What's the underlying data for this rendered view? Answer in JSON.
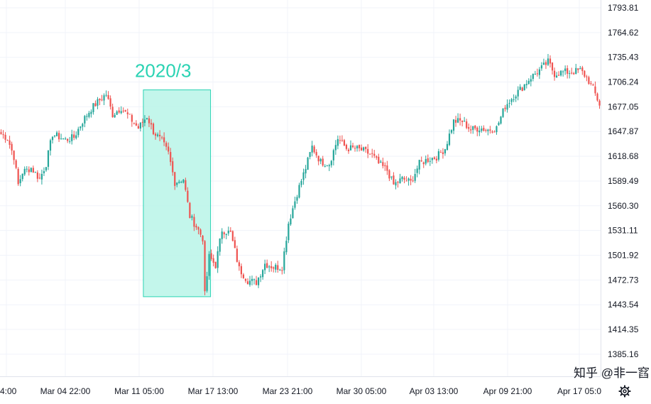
{
  "chart_data": {
    "type": "candlestick",
    "x_tick_labels": [
      "4:00",
      "Mar 04 22:00",
      "Mar 11 05:00",
      "Mar 17 13:00",
      "Mar 23 21:00",
      "Mar 30 05:00",
      "Apr 03 13:00",
      "Apr 09 21:00",
      "Apr 17 05:0"
    ],
    "y_tick_labels": [
      "1793.81",
      "1764.62",
      "1735.43",
      "1706.24",
      "1677.05",
      "1647.87",
      "1618.68",
      "1589.49",
      "1560.30",
      "1531.11",
      "1501.92",
      "1472.73",
      "1443.54",
      "1414.35",
      "1385.16"
    ],
    "ylim": [
      1371,
      1804
    ],
    "grid": true,
    "up_color": "#26a69a",
    "down_color": "#ef5350",
    "highlight": {
      "label": "2020/3",
      "from_index": 67,
      "to_index": 97,
      "y_range": [
        1453,
        1697
      ],
      "fill": "#b9f5e7",
      "stroke": "#2ad3b3"
    },
    "close_path": [
      [
        0,
        1645
      ],
      [
        3,
        1640
      ],
      [
        6,
        1618
      ],
      [
        8,
        1585
      ],
      [
        10,
        1600
      ],
      [
        14,
        1605
      ],
      [
        18,
        1592
      ],
      [
        21,
        1610
      ],
      [
        24,
        1645
      ],
      [
        30,
        1638
      ],
      [
        34,
        1641
      ],
      [
        38,
        1660
      ],
      [
        42,
        1675
      ],
      [
        46,
        1685
      ],
      [
        49,
        1692
      ],
      [
        52,
        1668
      ],
      [
        56,
        1676
      ],
      [
        60,
        1664
      ],
      [
        64,
        1652
      ],
      [
        68,
        1666
      ],
      [
        71,
        1648
      ],
      [
        75,
        1636
      ],
      [
        78,
        1622
      ],
      [
        81,
        1588
      ],
      [
        85,
        1592
      ],
      [
        88,
        1548
      ],
      [
        91,
        1536
      ],
      [
        94,
        1522
      ],
      [
        95,
        1455
      ],
      [
        97,
        1500
      ],
      [
        100,
        1490
      ],
      [
        103,
        1532
      ],
      [
        107,
        1528
      ],
      [
        111,
        1486
      ],
      [
        115,
        1472
      ],
      [
        119,
        1470
      ],
      [
        123,
        1492
      ],
      [
        127,
        1488
      ],
      [
        131,
        1488
      ],
      [
        134,
        1540
      ],
      [
        138,
        1575
      ],
      [
        142,
        1605
      ],
      [
        145,
        1630
      ],
      [
        149,
        1612
      ],
      [
        153,
        1610
      ],
      [
        157,
        1640
      ],
      [
        161,
        1628
      ],
      [
        165,
        1628
      ],
      [
        169,
        1625
      ],
      [
        173,
        1620
      ],
      [
        176,
        1610
      ],
      [
        180,
        1602
      ],
      [
        183,
        1585
      ],
      [
        187,
        1592
      ],
      [
        191,
        1588
      ],
      [
        195,
        1610
      ],
      [
        199,
        1615
      ],
      [
        203,
        1618
      ],
      [
        207,
        1628
      ],
      [
        211,
        1660
      ],
      [
        215,
        1660
      ],
      [
        219,
        1650
      ],
      [
        223,
        1652
      ],
      [
        227,
        1650
      ],
      [
        231,
        1652
      ],
      [
        235,
        1678
      ],
      [
        239,
        1690
      ],
      [
        243,
        1700
      ],
      [
        247,
        1712
      ],
      [
        251,
        1720
      ],
      [
        255,
        1730
      ],
      [
        258,
        1716
      ],
      [
        262,
        1718
      ],
      [
        266,
        1718
      ],
      [
        270,
        1720
      ],
      [
        273,
        1712
      ],
      [
        276,
        1698
      ],
      [
        279,
        1680
      ]
    ],
    "candle_count": 280,
    "random_seed": 7
  },
  "watermark": "知乎 @非一窞"
}
